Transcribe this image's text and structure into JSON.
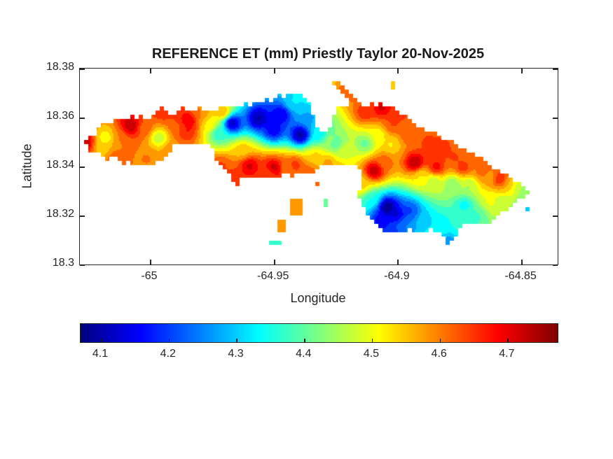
{
  "chart_data": {
    "type": "filled-contour-map",
    "title": "REFERENCE ET (mm) Priestly Taylor 20-Nov-2025",
    "xlabel": "Longitude",
    "ylabel": "Latitude",
    "xlim": [
      -65.0283,
      -64.8353
    ],
    "ylim": [
      18.3,
      18.38
    ],
    "xticks": [
      -65,
      -64.95,
      -64.9,
      -64.85
    ],
    "xtick_labels": [
      "-65",
      "-64.95",
      "-64.9",
      "-64.85"
    ],
    "yticks": [
      18.38,
      18.36,
      18.34,
      18.32,
      18.3
    ],
    "ytick_labels": [
      "18.38",
      "18.36",
      "18.34",
      "18.32",
      "18.3"
    ],
    "grid": false,
    "colormap": "jet",
    "colorbar": {
      "orientation": "horizontal",
      "vmin": 4.07,
      "vmax": 4.774,
      "ticks": [
        4.1,
        4.2,
        4.3,
        4.4,
        4.5,
        4.6,
        4.7
      ],
      "tick_labels": [
        "4.1",
        "4.2",
        "4.3",
        "4.4",
        "4.5",
        "4.6",
        "4.7"
      ]
    },
    "units": "mm",
    "coord_space_note": "island outlines and field points are in plot fractions: x 0=xlim[0] to 1=xlim[1]; y 0=ylim max (18.38, top) to 1=ylim min (18.3, bottom)",
    "island": {
      "main_outline": [
        [
          0.009,
          0.375
        ],
        [
          0.019,
          0.339
        ],
        [
          0.029,
          0.354
        ],
        [
          0.04,
          0.296
        ],
        [
          0.05,
          0.268
        ],
        [
          0.062,
          0.289
        ],
        [
          0.073,
          0.261
        ],
        [
          0.087,
          0.246
        ],
        [
          0.098,
          0.261
        ],
        [
          0.107,
          0.232
        ],
        [
          0.119,
          0.254
        ],
        [
          0.13,
          0.243
        ],
        [
          0.142,
          0.261
        ],
        [
          0.154,
          0.236
        ],
        [
          0.166,
          0.218
        ],
        [
          0.173,
          0.196
        ],
        [
          0.183,
          0.218
        ],
        [
          0.195,
          0.236
        ],
        [
          0.204,
          0.211
        ],
        [
          0.213,
          0.189
        ],
        [
          0.224,
          0.211
        ],
        [
          0.236,
          0.225
        ],
        [
          0.249,
          0.193
        ],
        [
          0.262,
          0.214
        ],
        [
          0.274,
          0.2
        ],
        [
          0.286,
          0.218
        ],
        [
          0.298,
          0.189
        ],
        [
          0.309,
          0.204
        ],
        [
          0.321,
          0.189
        ],
        [
          0.333,
          0.207
        ],
        [
          0.345,
          0.175
        ],
        [
          0.356,
          0.189
        ],
        [
          0.368,
          0.168
        ],
        [
          0.38,
          0.179
        ],
        [
          0.391,
          0.154
        ],
        [
          0.403,
          0.164
        ],
        [
          0.414,
          0.129
        ],
        [
          0.424,
          0.146
        ],
        [
          0.435,
          0.125
        ],
        [
          0.447,
          0.136
        ],
        [
          0.458,
          0.118
        ],
        [
          0.466,
          0.139
        ],
        [
          0.475,
          0.161
        ],
        [
          0.484,
          0.196
        ],
        [
          0.49,
          0.243
        ],
        [
          0.494,
          0.286
        ],
        [
          0.501,
          0.311
        ],
        [
          0.512,
          0.321
        ],
        [
          0.521,
          0.304
        ],
        [
          0.528,
          0.268
        ],
        [
          0.534,
          0.225
        ],
        [
          0.541,
          0.196
        ],
        [
          0.551,
          0.182
        ],
        [
          0.563,
          0.189
        ],
        [
          0.575,
          0.164
        ],
        [
          0.587,
          0.179
        ],
        [
          0.597,
          0.189
        ],
        [
          0.609,
          0.175
        ],
        [
          0.62,
          0.189
        ],
        [
          0.632,
          0.179
        ],
        [
          0.644,
          0.193
        ],
        [
          0.655,
          0.196
        ],
        [
          0.667,
          0.218
        ],
        [
          0.679,
          0.236
        ],
        [
          0.691,
          0.257
        ],
        [
          0.702,
          0.282
        ],
        [
          0.714,
          0.3
        ],
        [
          0.726,
          0.318
        ],
        [
          0.738,
          0.325
        ],
        [
          0.749,
          0.332
        ],
        [
          0.758,
          0.354
        ],
        [
          0.77,
          0.364
        ],
        [
          0.78,
          0.375
        ],
        [
          0.789,
          0.4
        ],
        [
          0.801,
          0.411
        ],
        [
          0.812,
          0.418
        ],
        [
          0.823,
          0.439
        ],
        [
          0.834,
          0.454
        ],
        [
          0.846,
          0.464
        ],
        [
          0.856,
          0.489
        ],
        [
          0.865,
          0.507
        ],
        [
          0.877,
          0.518
        ],
        [
          0.887,
          0.529
        ],
        [
          0.896,
          0.55
        ],
        [
          0.906,
          0.564
        ],
        [
          0.916,
          0.575
        ],
        [
          0.927,
          0.593
        ],
        [
          0.936,
          0.611
        ],
        [
          0.941,
          0.625
        ],
        [
          0.934,
          0.65
        ],
        [
          0.925,
          0.664
        ],
        [
          0.915,
          0.671
        ],
        [
          0.906,
          0.693
        ],
        [
          0.9,
          0.711
        ],
        [
          0.89,
          0.721
        ],
        [
          0.881,
          0.736
        ],
        [
          0.874,
          0.757
        ],
        [
          0.865,
          0.771
        ],
        [
          0.856,
          0.786
        ],
        [
          0.846,
          0.796
        ],
        [
          0.836,
          0.786
        ],
        [
          0.826,
          0.793
        ],
        [
          0.814,
          0.789
        ],
        [
          0.803,
          0.8
        ],
        [
          0.793,
          0.825
        ],
        [
          0.786,
          0.854
        ],
        [
          0.78,
          0.882
        ],
        [
          0.774,
          0.904
        ],
        [
          0.767,
          0.886
        ],
        [
          0.761,
          0.857
        ],
        [
          0.752,
          0.836
        ],
        [
          0.742,
          0.829
        ],
        [
          0.732,
          0.821
        ],
        [
          0.721,
          0.829
        ],
        [
          0.713,
          0.843
        ],
        [
          0.702,
          0.829
        ],
        [
          0.692,
          0.818
        ],
        [
          0.682,
          0.836
        ],
        [
          0.672,
          0.846
        ],
        [
          0.661,
          0.832
        ],
        [
          0.651,
          0.846
        ],
        [
          0.641,
          0.843
        ],
        [
          0.631,
          0.829
        ],
        [
          0.62,
          0.8
        ],
        [
          0.611,
          0.768
        ],
        [
          0.603,
          0.743
        ],
        [
          0.594,
          0.711
        ],
        [
          0.588,
          0.671
        ],
        [
          0.581,
          0.646
        ],
        [
          0.587,
          0.611
        ],
        [
          0.591,
          0.564
        ],
        [
          0.592,
          0.521
        ],
        [
          0.582,
          0.504
        ],
        [
          0.572,
          0.489
        ],
        [
          0.56,
          0.486
        ],
        [
          0.548,
          0.496
        ],
        [
          0.537,
          0.489
        ],
        [
          0.523,
          0.482
        ],
        [
          0.512,
          0.493
        ],
        [
          0.501,
          0.5
        ],
        [
          0.493,
          0.521
        ],
        [
          0.484,
          0.539
        ],
        [
          0.472,
          0.546
        ],
        [
          0.46,
          0.536
        ],
        [
          0.449,
          0.55
        ],
        [
          0.437,
          0.543
        ],
        [
          0.425,
          0.546
        ],
        [
          0.414,
          0.554
        ],
        [
          0.402,
          0.546
        ],
        [
          0.391,
          0.557
        ],
        [
          0.38,
          0.564
        ],
        [
          0.368,
          0.554
        ],
        [
          0.358,
          0.561
        ],
        [
          0.346,
          0.55
        ],
        [
          0.337,
          0.564
        ],
        [
          0.331,
          0.604
        ],
        [
          0.327,
          0.625
        ],
        [
          0.323,
          0.582
        ],
        [
          0.315,
          0.546
        ],
        [
          0.306,
          0.521
        ],
        [
          0.296,
          0.504
        ],
        [
          0.287,
          0.475
        ],
        [
          0.284,
          0.439
        ],
        [
          0.282,
          0.411
        ],
        [
          0.27,
          0.396
        ],
        [
          0.258,
          0.389
        ],
        [
          0.246,
          0.382
        ],
        [
          0.235,
          0.389
        ],
        [
          0.223,
          0.396
        ],
        [
          0.211,
          0.382
        ],
        [
          0.201,
          0.379
        ],
        [
          0.194,
          0.404
        ],
        [
          0.186,
          0.436
        ],
        [
          0.177,
          0.461
        ],
        [
          0.169,
          0.471
        ],
        [
          0.158,
          0.486
        ],
        [
          0.148,
          0.496
        ],
        [
          0.138,
          0.504
        ],
        [
          0.126,
          0.486
        ],
        [
          0.114,
          0.496
        ],
        [
          0.104,
          0.479
        ],
        [
          0.092,
          0.486
        ],
        [
          0.081,
          0.471
        ],
        [
          0.069,
          0.45
        ],
        [
          0.057,
          0.461
        ],
        [
          0.047,
          0.439
        ],
        [
          0.037,
          0.421
        ],
        [
          0.026,
          0.432
        ],
        [
          0.018,
          0.411
        ]
      ],
      "extra_polygons": [
        [
          [
            0.532,
            0.054
          ],
          [
            0.589,
            0.175
          ],
          [
            0.579,
            0.193
          ],
          [
            0.523,
            0.071
          ]
        ],
        [
          [
            0.443,
            0.671
          ],
          [
            0.469,
            0.671
          ],
          [
            0.469,
            0.743
          ],
          [
            0.443,
            0.743
          ]
        ],
        [
          [
            0.411,
            0.779
          ],
          [
            0.427,
            0.779
          ],
          [
            0.427,
            0.846
          ],
          [
            0.411,
            0.846
          ]
        ],
        [
          [
            0.4,
            0.882
          ],
          [
            0.418,
            0.882
          ],
          [
            0.418,
            0.904
          ],
          [
            0.4,
            0.904
          ]
        ],
        [
          [
            0.507,
            0.661
          ],
          [
            0.521,
            0.661
          ],
          [
            0.521,
            0.704
          ],
          [
            0.507,
            0.704
          ]
        ],
        [
          [
            0.493,
            0.571
          ],
          [
            0.503,
            0.571
          ],
          [
            0.503,
            0.604
          ],
          [
            0.493,
            0.604
          ]
        ],
        [
          [
            0.93,
            0.714
          ],
          [
            0.938,
            0.714
          ],
          [
            0.938,
            0.736
          ],
          [
            0.93,
            0.736
          ]
        ],
        [
          [
            0.65,
            0.061
          ],
          [
            0.664,
            0.061
          ],
          [
            0.664,
            0.104
          ],
          [
            0.65,
            0.104
          ]
        ]
      ]
    },
    "field_points": [
      [
        0.318,
        0.279,
        4.09
      ],
      [
        0.374,
        0.257,
        4.09
      ],
      [
        0.421,
        0.236,
        4.13
      ],
      [
        0.462,
        0.339,
        4.07
      ],
      [
        0.406,
        0.314,
        4.14
      ],
      [
        0.479,
        0.254,
        4.27
      ],
      [
        0.501,
        0.339,
        4.32
      ],
      [
        0.447,
        0.175,
        4.32
      ],
      [
        0.535,
        0.386,
        4.38
      ],
      [
        0.289,
        0.332,
        4.35
      ],
      [
        0.271,
        0.289,
        4.52
      ],
      [
        0.34,
        0.421,
        4.55
      ],
      [
        0.355,
        0.496,
        4.72
      ],
      [
        0.406,
        0.511,
        4.77
      ],
      [
        0.45,
        0.493,
        4.66
      ],
      [
        0.223,
        0.314,
        4.68
      ],
      [
        0.227,
        0.268,
        4.72
      ],
      [
        0.252,
        0.225,
        4.6
      ],
      [
        0.298,
        0.225,
        4.58
      ],
      [
        0.296,
        0.496,
        4.64
      ],
      [
        0.321,
        0.568,
        4.66
      ],
      [
        0.009,
        0.375,
        4.74
      ],
      [
        0.054,
        0.354,
        4.5
      ],
      [
        0.048,
        0.411,
        4.54
      ],
      [
        0.107,
        0.293,
        4.74
      ],
      [
        0.084,
        0.361,
        4.6
      ],
      [
        0.135,
        0.304,
        4.62
      ],
      [
        0.166,
        0.354,
        4.46
      ],
      [
        0.186,
        0.418,
        4.58
      ],
      [
        0.208,
        0.304,
        4.62
      ],
      [
        0.173,
        0.218,
        4.66
      ],
      [
        0.142,
        0.457,
        4.6
      ],
      [
        0.073,
        0.457,
        4.62
      ],
      [
        0.494,
        0.446,
        4.54
      ],
      [
        0.519,
        0.475,
        4.58
      ],
      [
        0.523,
        0.368,
        4.44
      ],
      [
        0.553,
        0.421,
        4.48
      ],
      [
        0.597,
        0.382,
        4.4
      ],
      [
        0.616,
        0.521,
        4.75
      ],
      [
        0.638,
        0.475,
        4.62
      ],
      [
        0.597,
        0.225,
        4.66
      ],
      [
        0.633,
        0.2,
        4.72
      ],
      [
        0.655,
        0.289,
        4.64
      ],
      [
        0.623,
        0.339,
        4.5
      ],
      [
        0.652,
        0.386,
        4.52
      ],
      [
        0.685,
        0.339,
        4.62
      ],
      [
        0.702,
        0.482,
        4.76
      ],
      [
        0.729,
        0.375,
        4.64
      ],
      [
        0.755,
        0.411,
        4.66
      ],
      [
        0.784,
        0.454,
        4.64
      ],
      [
        0.746,
        0.504,
        4.7
      ],
      [
        0.802,
        0.504,
        4.66
      ],
      [
        0.843,
        0.525,
        4.62
      ],
      [
        0.861,
        0.554,
        4.58
      ],
      [
        0.88,
        0.564,
        4.7
      ],
      [
        0.897,
        0.589,
        4.56
      ],
      [
        0.916,
        0.604,
        4.48
      ],
      [
        0.931,
        0.629,
        4.42
      ],
      [
        0.714,
        0.546,
        4.52
      ],
      [
        0.74,
        0.575,
        4.46
      ],
      [
        0.78,
        0.589,
        4.42
      ],
      [
        0.814,
        0.596,
        4.45
      ],
      [
        0.644,
        0.707,
        4.05
      ],
      [
        0.664,
        0.746,
        4.12
      ],
      [
        0.692,
        0.725,
        4.2
      ],
      [
        0.721,
        0.779,
        4.3
      ],
      [
        0.758,
        0.796,
        4.34
      ],
      [
        0.795,
        0.796,
        4.36
      ],
      [
        0.805,
        0.696,
        4.33
      ],
      [
        0.831,
        0.754,
        4.38
      ],
      [
        0.861,
        0.682,
        4.5
      ],
      [
        0.883,
        0.689,
        4.46
      ],
      [
        0.773,
        0.886,
        4.26
      ],
      [
        0.655,
        0.832,
        4.2
      ],
      [
        0.633,
        0.779,
        4.14
      ],
      [
        0.68,
        0.796,
        4.25
      ],
      [
        0.729,
        0.832,
        4.32
      ],
      [
        0.611,
        0.671,
        4.35
      ],
      [
        0.589,
        0.589,
        4.55
      ],
      [
        0.538,
        0.539,
        4.6
      ],
      [
        0.479,
        0.525,
        4.62
      ],
      [
        0.433,
        0.511,
        4.6
      ],
      [
        0.399,
        0.529,
        4.62
      ],
      [
        0.456,
        0.707,
        4.58
      ],
      [
        0.418,
        0.814,
        4.6
      ],
      [
        0.409,
        0.893,
        4.36
      ],
      [
        0.513,
        0.682,
        4.4
      ],
      [
        0.497,
        0.586,
        4.64
      ],
      [
        0.934,
        0.725,
        4.3
      ],
      [
        0.657,
        0.082,
        4.55
      ],
      [
        0.56,
        0.118,
        4.62
      ],
      [
        0.812,
        0.439,
        4.62
      ],
      [
        0.853,
        0.493,
        4.6
      ],
      [
        0.663,
        0.225,
        4.66
      ]
    ]
  },
  "axes_color": "#262626"
}
